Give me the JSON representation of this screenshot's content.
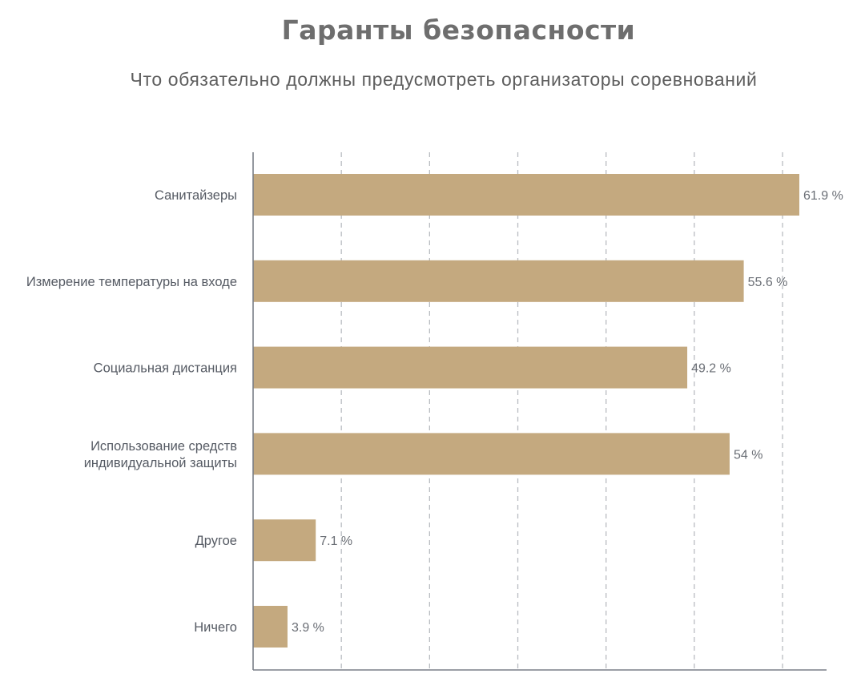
{
  "title": "Гаранты безопасности",
  "subtitle": "Что обязательно должны предусмотреть организаторы соревнований",
  "colors": {
    "bar": "#c4a97f",
    "axis": "#7a7f87",
    "grid": "#b9bcc1",
    "title": "#6e6e6e",
    "label": "#555a63"
  },
  "chart_data": {
    "type": "bar",
    "orientation": "horizontal",
    "title": "Гаранты безопасности",
    "subtitle": "Что обязательно должны предусмотреть организаторы соревнований",
    "xlabel": "",
    "ylabel": "",
    "xlim": [
      0,
      65
    ],
    "grid": "vertical dashed",
    "legend": "none",
    "categories": [
      [
        "Санитайзеры"
      ],
      [
        "Измерение температуры на входе"
      ],
      [
        "Социальная дистанция"
      ],
      [
        "Использование средств",
        "индивидуальной защиты"
      ],
      [
        "Другое"
      ],
      [
        "Ничего"
      ]
    ],
    "values": [
      61.9,
      55.6,
      49.2,
      54,
      7.1,
      3.9
    ],
    "value_labels": [
      "61.9 %",
      "55.6 %",
      "49.2 %",
      "54 %",
      "7.1 %",
      "3.9 %"
    ]
  }
}
